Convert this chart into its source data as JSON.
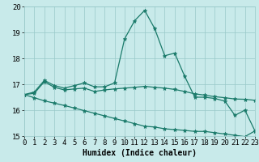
{
  "x": [
    0,
    1,
    2,
    3,
    4,
    5,
    6,
    7,
    8,
    9,
    10,
    11,
    12,
    13,
    14,
    15,
    16,
    17,
    18,
    19,
    20,
    21,
    22,
    23
  ],
  "line1": [
    16.6,
    16.7,
    17.15,
    16.95,
    16.85,
    16.95,
    17.05,
    16.9,
    16.9,
    17.05,
    18.75,
    19.45,
    19.85,
    19.15,
    18.1,
    18.2,
    17.3,
    16.5,
    16.5,
    16.45,
    16.35,
    15.8,
    16.0,
    15.2
  ],
  "line2": [
    16.6,
    16.65,
    17.1,
    16.88,
    16.78,
    16.82,
    16.85,
    16.72,
    16.78,
    16.82,
    16.85,
    16.88,
    16.92,
    16.88,
    16.85,
    16.8,
    16.72,
    16.63,
    16.58,
    16.52,
    16.48,
    16.43,
    16.42,
    16.38
  ],
  "line3": [
    16.6,
    16.48,
    16.36,
    16.27,
    16.18,
    16.08,
    15.98,
    15.88,
    15.78,
    15.68,
    15.58,
    15.48,
    15.38,
    15.35,
    15.28,
    15.25,
    15.22,
    15.18,
    15.18,
    15.13,
    15.08,
    15.03,
    14.98,
    15.2
  ],
  "line_color": "#1a7a6a",
  "bg_color": "#c8eaea",
  "grid_color": "#98c8c8",
  "xlabel": "Humidex (Indice chaleur)",
  "ylim": [
    15,
    20
  ],
  "xlim": [
    0,
    23
  ],
  "yticks": [
    15,
    16,
    17,
    18,
    19,
    20
  ],
  "xticks": [
    0,
    1,
    2,
    3,
    4,
    5,
    6,
    7,
    8,
    9,
    10,
    11,
    12,
    13,
    14,
    15,
    16,
    17,
    18,
    19,
    20,
    21,
    22,
    23
  ],
  "marker": "*",
  "markersize": 3.5,
  "linewidth": 0.9,
  "xlabel_fontsize": 7,
  "tick_fontsize": 6.5
}
